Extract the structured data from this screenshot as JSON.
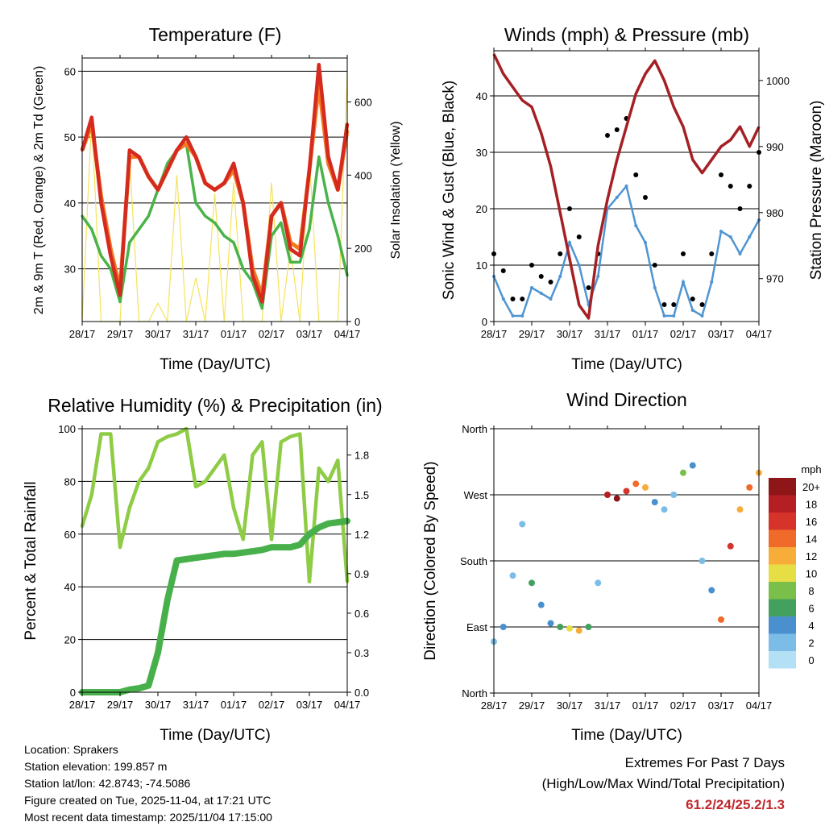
{
  "colors": {
    "red": "#d42a1f",
    "orange": "#f47920",
    "green": "#4ab34a",
    "yellow": "#f5e35a",
    "blue": "#4f95d2",
    "black": "#000000",
    "maroon": "#a52024",
    "rh": "#8fcc45",
    "rain": "#48b04b",
    "extreme": "#c0282d",
    "speed_scale": [
      "#b3e0f5",
      "#7bbde6",
      "#4a90cf",
      "#44a05e",
      "#7bbf4b",
      "#e5de45",
      "#f8ad3b",
      "#f06a2a",
      "#d6332a",
      "#b51f23",
      "#8e1518"
    ]
  },
  "time_ticks": [
    "28/17",
    "29/17",
    "30/17",
    "31/17",
    "01/17",
    "02/17",
    "03/17",
    "04/17"
  ],
  "time_axis_label": "Time (Day/UTC)",
  "info": {
    "location": "Location: Sprakers",
    "elevation": "Station elevation: 199.857 m",
    "latlon": "Station lat/lon: 42.8743; -74.5086",
    "created": "Figure created on Tue, 2025-11-04, at 17:21 UTC",
    "recent": "Most recent data timestamp: 2025/11/04 17:15:00"
  },
  "extremes": {
    "title": "Extremes For Past 7 Days",
    "subtitle": "(High/Low/Max Wind/Total Precipitation)",
    "values": "61.2/24/25.2/1.3"
  },
  "chart_data": [
    {
      "type": "line",
      "title": "Temperature (F)",
      "xlabel": "Time (Day/UTC)",
      "ylabel": "2m & 9m T (Red, Orange) & 2m Td (Green)",
      "y2label": "Solar Insolation (Yellow)",
      "x": [
        0,
        0.25,
        0.5,
        0.75,
        1,
        1.25,
        1.5,
        1.75,
        2,
        2.25,
        2.5,
        2.75,
        3,
        3.25,
        3.5,
        3.75,
        4,
        4.25,
        4.5,
        4.75,
        5,
        5.25,
        5.5,
        5.75,
        6,
        6.25,
        6.5,
        6.75,
        7
      ],
      "ylim": [
        22,
        62
      ],
      "yticks": [
        30,
        40,
        50,
        60
      ],
      "y2lim": [
        0,
        720
      ],
      "y2ticks": [
        0,
        200,
        400,
        600
      ],
      "series": [
        {
          "name": "2m T",
          "color": "red",
          "values": [
            48,
            53,
            40,
            32,
            26,
            48,
            47,
            44,
            42,
            45,
            48,
            50,
            47,
            43,
            42,
            43,
            46,
            40,
            29,
            25,
            38,
            40,
            33,
            32,
            45,
            61,
            47,
            42,
            52
          ]
        },
        {
          "name": "9m T",
          "color": "orange",
          "values": [
            48,
            52,
            41,
            33,
            27,
            47,
            47,
            44,
            42,
            45,
            48,
            49,
            47,
            43,
            42,
            43,
            45,
            40,
            30,
            26,
            38,
            40,
            34,
            33,
            45,
            58,
            46,
            42,
            51
          ]
        },
        {
          "name": "2m Td",
          "color": "green",
          "values": [
            38,
            36,
            32,
            30,
            25,
            34,
            36,
            38,
            42,
            46,
            48,
            49,
            40,
            38,
            37,
            35,
            34,
            30,
            28,
            24,
            35,
            37,
            31,
            31,
            36,
            47,
            40,
            35,
            29
          ]
        },
        {
          "name": "Solar Insolation",
          "color": "yellow",
          "axis": "y2",
          "values": [
            0,
            560,
            0,
            0,
            0,
            450,
            0,
            0,
            50,
            0,
            400,
            0,
            120,
            0,
            350,
            0,
            380,
            0,
            0,
            0,
            380,
            0,
            200,
            0,
            450,
            0,
            0,
            0,
            680
          ]
        }
      ]
    },
    {
      "type": "scatter",
      "title": "Winds (mph) & Pressure (mb)",
      "xlabel": "Time (Day/UTC)",
      "ylabel": "Sonic Wind & Gust (Blue, Black)",
      "y2label": "Station Pressure (Maroon)",
      "x": [
        0,
        0.25,
        0.5,
        0.75,
        1,
        1.25,
        1.5,
        1.75,
        2,
        2.25,
        2.5,
        2.75,
        3,
        3.25,
        3.5,
        3.75,
        4,
        4.25,
        4.5,
        4.75,
        5,
        5.25,
        5.5,
        5.75,
        6,
        6.25,
        6.5,
        6.75,
        7
      ],
      "ylim": [
        0,
        48
      ],
      "yticks": [
        0,
        10,
        20,
        30,
        40
      ],
      "y2lim": [
        963.5,
        1004.5
      ],
      "y2ticks": [
        970,
        980,
        990,
        1000
      ],
      "series": [
        {
          "name": "Gust",
          "color": "black",
          "values": [
            12,
            9,
            4,
            4,
            10,
            8,
            7,
            12,
            20,
            15,
            6,
            12,
            33,
            34,
            36,
            26,
            22,
            10,
            3,
            3,
            12,
            4,
            3,
            12,
            26,
            24,
            20,
            24,
            30
          ]
        },
        {
          "name": "Wind",
          "color": "blue",
          "values": [
            8,
            4,
            1,
            1,
            6,
            5,
            4,
            8,
            14,
            10,
            3,
            8,
            20,
            22,
            24,
            17,
            14,
            6,
            1,
            1,
            7,
            2,
            1,
            7,
            16,
            15,
            12,
            15,
            18
          ]
        },
        {
          "name": "Pressure",
          "color": "maroon",
          "axis": "y2",
          "values": [
            1004,
            1001,
            999,
            997,
            996,
            992,
            987,
            980,
            973,
            966,
            964,
            975,
            982,
            988,
            993,
            998,
            1001,
            1003,
            1000,
            996,
            993,
            988,
            986,
            988,
            990,
            991,
            993,
            990,
            993
          ]
        }
      ]
    },
    {
      "type": "line",
      "title": "Relative Humidity (%) & Precipitation (in)",
      "xlabel": "Time (Day/UTC)",
      "ylabel": "Percent & Total Rainfall",
      "x": [
        0,
        0.25,
        0.5,
        0.75,
        1,
        1.25,
        1.5,
        1.75,
        2,
        2.25,
        2.5,
        2.75,
        3,
        3.25,
        3.5,
        3.75,
        4,
        4.25,
        4.5,
        4.75,
        5,
        5.25,
        5.5,
        5.75,
        6,
        6.25,
        6.5,
        6.75,
        7
      ],
      "ylim": [
        0,
        100
      ],
      "yticks": [
        0,
        20,
        40,
        60,
        80,
        100
      ],
      "y2lim": [
        0,
        2.0
      ],
      "y2ticks": [
        0.0,
        0.3,
        0.6,
        0.9,
        1.2,
        1.5,
        1.8
      ],
      "y2ticklabels": [
        "0.0",
        "0.3",
        "0.6",
        "0.9",
        "1.2",
        "1.5",
        "1.8"
      ],
      "series": [
        {
          "name": "Relative Humidity",
          "color": "rh",
          "values": [
            63,
            75,
            98,
            98,
            55,
            70,
            80,
            85,
            95,
            97,
            98,
            100,
            78,
            80,
            85,
            90,
            70,
            58,
            90,
            95,
            58,
            95,
            97,
            98,
            42,
            85,
            80,
            88,
            42
          ]
        },
        {
          "name": "Total Rainfall",
          "color": "rain",
          "axis": "y2",
          "values": [
            0,
            0,
            0,
            0,
            0,
            0.02,
            0.03,
            0.05,
            0.3,
            0.7,
            1.0,
            1.01,
            1.02,
            1.03,
            1.04,
            1.05,
            1.05,
            1.06,
            1.07,
            1.08,
            1.1,
            1.1,
            1.1,
            1.12,
            1.2,
            1.25,
            1.28,
            1.29,
            1.3
          ]
        }
      ]
    },
    {
      "type": "scatter",
      "title": "Wind Direction",
      "xlabel": "Time (Day/UTC)",
      "ylabel": "Direction (Colored By Speed)",
      "x": [
        0,
        0.25,
        0.5,
        0.75,
        1,
        1.25,
        1.5,
        1.75,
        2,
        2.25,
        2.5,
        2.75,
        3,
        3.25,
        3.5,
        3.75,
        4,
        4.25,
        4.5,
        4.75,
        5,
        5.25,
        5.5,
        5.75,
        6,
        6.25,
        6.5,
        6.75,
        7
      ],
      "ylim": [
        0,
        360
      ],
      "yticks": [
        0,
        90,
        180,
        270,
        360
      ],
      "yticklabels": [
        "North",
        "East",
        "South",
        "West",
        "North"
      ],
      "series": [
        {
          "name": "Direction",
          "values": [
            70,
            90,
            160,
            230,
            150,
            120,
            95,
            90,
            88,
            85,
            90,
            150,
            270,
            265,
            275,
            285,
            280,
            260,
            250,
            270,
            300,
            310,
            180,
            140,
            100,
            200,
            250,
            280,
            300
          ]
        },
        {
          "name": "Speed (mph)",
          "values": [
            2,
            4,
            1,
            2,
            6,
            4,
            4,
            6,
            10,
            12,
            6,
            1,
            18,
            19,
            16,
            14,
            12,
            4,
            2,
            2,
            8,
            3,
            1,
            4,
            14,
            16,
            12,
            13,
            12
          ]
        }
      ],
      "colorbar": {
        "title": "mph",
        "labels": [
          "20+",
          "18",
          "16",
          "14",
          "12",
          "10",
          "8",
          "6",
          "4",
          "2",
          "0"
        ]
      }
    }
  ]
}
